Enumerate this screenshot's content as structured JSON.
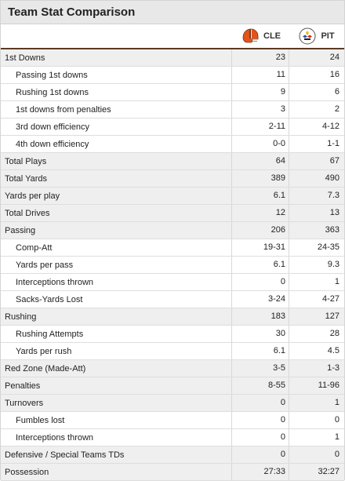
{
  "title": "Team Stat Comparison",
  "teams": [
    {
      "abbr": "CLE",
      "icon": "browns-helmet-icon",
      "color": "#e2541c"
    },
    {
      "abbr": "PIT",
      "icon": "steelers-logo-icon",
      "color": "#1a1a1a"
    }
  ],
  "rows": [
    {
      "label": "1st Downs",
      "cle": "23",
      "pit": "24",
      "type": "main"
    },
    {
      "label": "Passing 1st downs",
      "cle": "11",
      "pit": "16",
      "type": "sub"
    },
    {
      "label": "Rushing 1st downs",
      "cle": "9",
      "pit": "6",
      "type": "sub"
    },
    {
      "label": "1st downs from penalties",
      "cle": "3",
      "pit": "2",
      "type": "sub"
    },
    {
      "label": "3rd down efficiency",
      "cle": "2-11",
      "pit": "4-12",
      "type": "sub"
    },
    {
      "label": "4th down efficiency",
      "cle": "0-0",
      "pit": "1-1",
      "type": "sub"
    },
    {
      "label": "Total Plays",
      "cle": "64",
      "pit": "67",
      "type": "main"
    },
    {
      "label": "Total Yards",
      "cle": "389",
      "pit": "490",
      "type": "main"
    },
    {
      "label": "Yards per play",
      "cle": "6.1",
      "pit": "7.3",
      "type": "main"
    },
    {
      "label": "Total Drives",
      "cle": "12",
      "pit": "13",
      "type": "main"
    },
    {
      "label": "Passing",
      "cle": "206",
      "pit": "363",
      "type": "main"
    },
    {
      "label": "Comp-Att",
      "cle": "19-31",
      "pit": "24-35",
      "type": "sub"
    },
    {
      "label": "Yards per pass",
      "cle": "6.1",
      "pit": "9.3",
      "type": "sub"
    },
    {
      "label": "Interceptions thrown",
      "cle": "0",
      "pit": "1",
      "type": "sub"
    },
    {
      "label": "Sacks-Yards Lost",
      "cle": "3-24",
      "pit": "4-27",
      "type": "sub"
    },
    {
      "label": "Rushing",
      "cle": "183",
      "pit": "127",
      "type": "main"
    },
    {
      "label": "Rushing Attempts",
      "cle": "30",
      "pit": "28",
      "type": "sub"
    },
    {
      "label": "Yards per rush",
      "cle": "6.1",
      "pit": "4.5",
      "type": "sub"
    },
    {
      "label": "Red Zone (Made-Att)",
      "cle": "3-5",
      "pit": "1-3",
      "type": "main"
    },
    {
      "label": "Penalties",
      "cle": "8-55",
      "pit": "11-96",
      "type": "main"
    },
    {
      "label": "Turnovers",
      "cle": "0",
      "pit": "1",
      "type": "main"
    },
    {
      "label": "Fumbles lost",
      "cle": "0",
      "pit": "0",
      "type": "sub"
    },
    {
      "label": "Interceptions thrown",
      "cle": "0",
      "pit": "1",
      "type": "sub"
    },
    {
      "label": "Defensive / Special Teams TDs",
      "cle": "0",
      "pit": "0",
      "type": "main"
    },
    {
      "label": "Possession",
      "cle": "27:33",
      "pit": "32:27",
      "type": "main"
    }
  ]
}
